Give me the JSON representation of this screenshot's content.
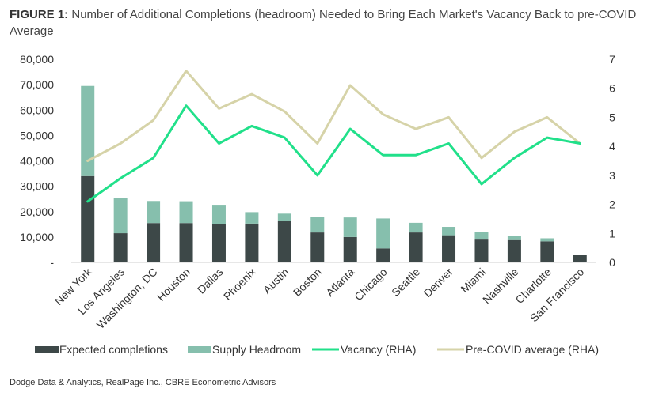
{
  "figure": {
    "prefix": "FIGURE 1:",
    "title": "Number of Additional Completions (headroom) Needed to Bring Each Market's Vacancy Back to pre-COVID Average",
    "source": "Dodge Data & Analytics, RealPage Inc., CBRE Econometric Advisors"
  },
  "colors": {
    "expected": "#3d4848",
    "headroom": "#86bfad",
    "vacancy": "#21e08a",
    "precovid": "#d6d3a8",
    "axis_text": "#333333",
    "grid": "#cfcfcf"
  },
  "chart_data": {
    "type": "bar",
    "title": "Number of Additional Completions (headroom) Needed to Bring Each Market's Vacancy Back to pre-COVID Average",
    "categories": [
      "New York",
      "Los Angeles",
      "Washington, DC",
      "Houston",
      "Dallas",
      "Phoenix",
      "Austin",
      "Boston",
      "Atlanta",
      "Chicago",
      "Seattle",
      "Denver",
      "Miami",
      "Nashville",
      "Charlotte",
      "San Francisco"
    ],
    "series": [
      {
        "name": "Expected completions",
        "type": "bar",
        "stack": "s",
        "axis": "left",
        "values": [
          34000,
          11500,
          15500,
          15500,
          15200,
          15300,
          16500,
          11800,
          10000,
          5500,
          11800,
          10700,
          9000,
          8800,
          8300,
          3000
        ]
      },
      {
        "name": "Supply Headroom",
        "type": "bar",
        "stack": "s",
        "axis": "left",
        "values": [
          35500,
          14000,
          8700,
          8600,
          7500,
          4500,
          2700,
          6000,
          7700,
          11800,
          3800,
          3300,
          3000,
          1700,
          1200,
          0
        ]
      },
      {
        "name": "Vacancy (RHA)",
        "type": "line",
        "axis": "right",
        "values": [
          2.1,
          2.9,
          3.6,
          5.4,
          4.1,
          4.7,
          4.3,
          3.0,
          4.6,
          3.7,
          3.7,
          4.1,
          2.7,
          3.6,
          4.3,
          4.1
        ]
      },
      {
        "name": "Pre-COVID average (RHA)",
        "type": "line",
        "axis": "right",
        "values": [
          3.5,
          4.1,
          4.9,
          6.6,
          5.3,
          5.8,
          5.2,
          4.1,
          6.1,
          5.1,
          4.6,
          5.0,
          3.6,
          4.5,
          5.0,
          4.1
        ]
      }
    ],
    "left_axis": {
      "min": 0,
      "max": 80000,
      "ticks": [
        "-",
        "10,000",
        "20,000",
        "30,000",
        "40,000",
        "50,000",
        "60,000",
        "70,000",
        "80,000"
      ]
    },
    "right_axis": {
      "min": 0,
      "max": 7,
      "ticks": [
        "0",
        "1",
        "2",
        "3",
        "4",
        "5",
        "6",
        "7"
      ]
    },
    "legend_position": "bottom"
  }
}
